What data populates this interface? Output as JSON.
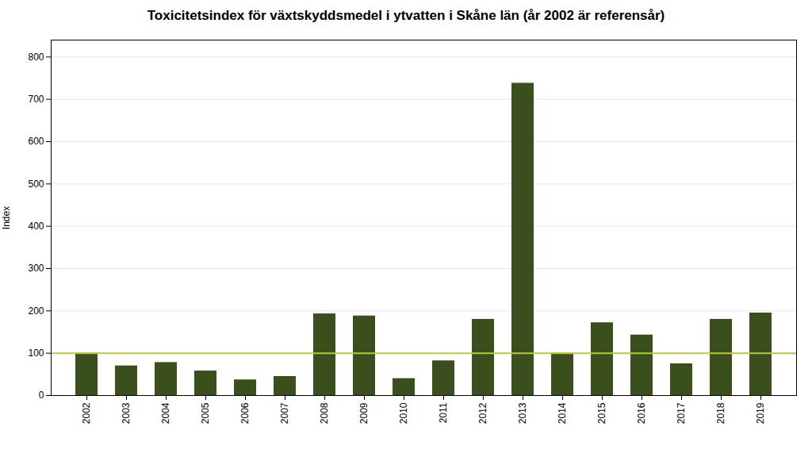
{
  "chart_data": {
    "type": "bar",
    "title": "Toxicitetsindex för växtskyddsmedel i ytvatten i Skåne län (år 2002 är referensår)",
    "ylabel": "Index",
    "categories": [
      "2002",
      "2003",
      "2004",
      "2005",
      "2006",
      "2007",
      "2008",
      "2009",
      "2010",
      "2011",
      "2012",
      "2013",
      "2014",
      "2015",
      "2016",
      "2017",
      "2018",
      "2019"
    ],
    "values": [
      100,
      70,
      78,
      58,
      37,
      45,
      193,
      188,
      40,
      82,
      180,
      738,
      100,
      172,
      143,
      75,
      180,
      195
    ],
    "color": "#3a4f1b",
    "reference_line": {
      "value": 100,
      "color": "#bdc93a"
    },
    "ylim": [
      0,
      840
    ],
    "yticks": [
      0,
      100,
      200,
      300,
      400,
      500,
      600,
      700,
      800
    ],
    "grid": true
  }
}
